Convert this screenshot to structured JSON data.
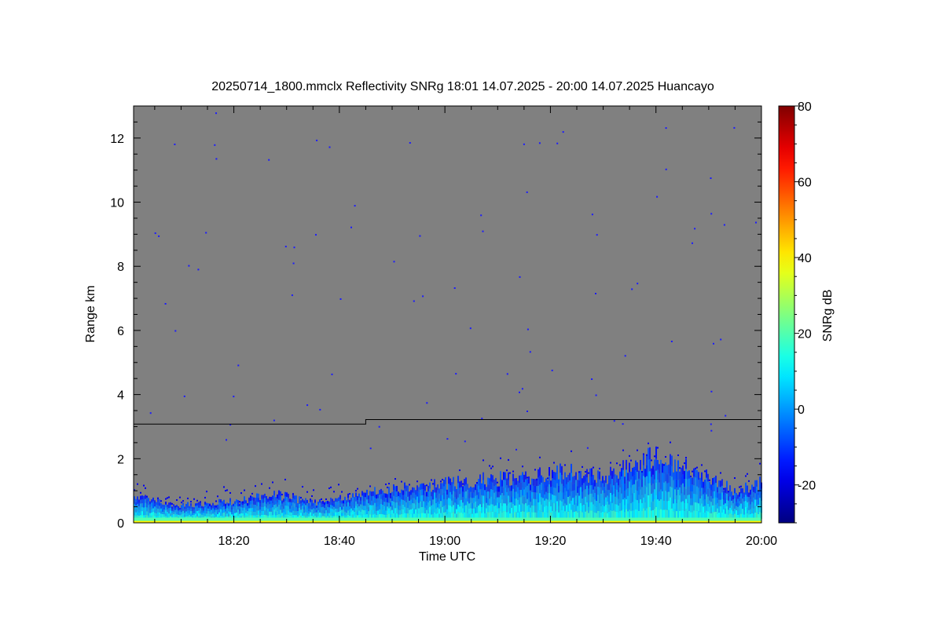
{
  "chart_data": {
    "type": "heatmap",
    "title": "20250714_1800.mmclx Reflectivity SNRg   18:01 14.07.2025 - 20:00 14.07.2025 Huancayo",
    "xlabel": "Time UTC",
    "ylabel": "Range km",
    "colorbar_label": "SNRg dB",
    "xlim": [
      "18:01",
      "20:00"
    ],
    "ylim": [
      0,
      13
    ],
    "x_ticks": [
      "18:20",
      "18:40",
      "19:00",
      "19:20",
      "19:40",
      "20:00"
    ],
    "y_ticks": [
      0,
      2,
      4,
      6,
      8,
      10,
      12
    ],
    "colorbar_ticks": [
      -20,
      0,
      20,
      40,
      60,
      80
    ],
    "colorbar_range": [
      -30,
      80
    ],
    "background_color": "#808080",
    "colormap": "jet",
    "boundary_line": [
      {
        "time": "18:01",
        "range_km": 3.08
      },
      {
        "time": "18:45",
        "range_km": 3.08
      },
      {
        "time": "18:45",
        "range_km": 3.22
      },
      {
        "time": "20:00",
        "range_km": 3.22
      }
    ],
    "echo_top_profile": [
      {
        "time": "18:01",
        "range_km": 0.85
      },
      {
        "time": "18:10",
        "range_km": 0.55
      },
      {
        "time": "18:20",
        "range_km": 0.7
      },
      {
        "time": "18:28",
        "range_km": 0.9
      },
      {
        "time": "18:35",
        "range_km": 0.65
      },
      {
        "time": "18:45",
        "range_km": 0.95
      },
      {
        "time": "18:55",
        "range_km": 1.15
      },
      {
        "time": "19:05",
        "range_km": 1.35
      },
      {
        "time": "19:15",
        "range_km": 1.45
      },
      {
        "time": "19:22",
        "range_km": 1.65
      },
      {
        "time": "19:30",
        "range_km": 1.45
      },
      {
        "time": "19:40",
        "range_km": 2.15
      },
      {
        "time": "19:48",
        "range_km": 1.6
      },
      {
        "time": "19:55",
        "range_km": 1.0
      },
      {
        "time": "20:00",
        "range_km": 1.3
      }
    ],
    "near_surface_snr_db": 20,
    "grid": false
  }
}
